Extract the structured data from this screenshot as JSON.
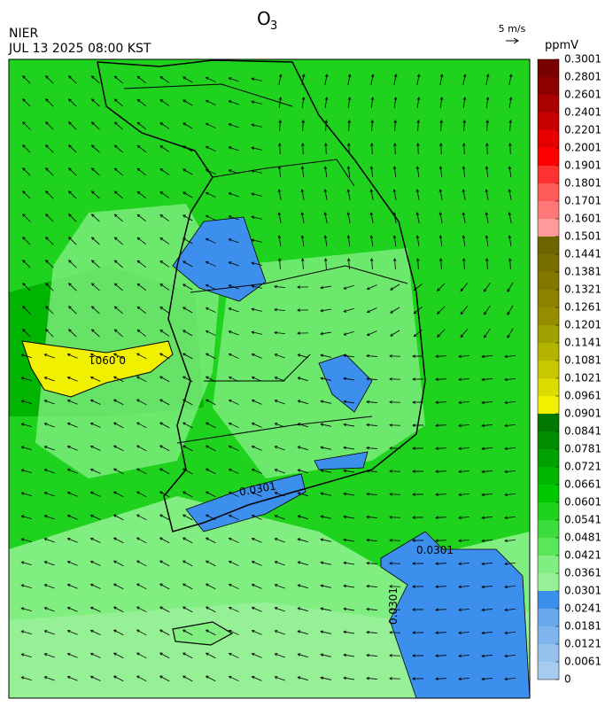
{
  "header": {
    "title": "O",
    "title_sub": "3",
    "agency": "NIER",
    "datetime": "JUL 13 2025 08:00 KST",
    "wind_scale": "5 m/s"
  },
  "map": {
    "contour_labels": [
      "0.0901",
      "0.0301",
      "0.0301",
      "0.0301"
    ]
  },
  "colorbar": {
    "unit": "ppmV",
    "ticks": [
      0,
      0.0061,
      0.0121,
      0.0181,
      0.0241,
      0.0301,
      0.0361,
      0.0421,
      0.0481,
      0.0541,
      0.0601,
      0.0661,
      0.0721,
      0.0781,
      0.0841,
      0.0901,
      0.0961,
      0.1021,
      0.1081,
      0.1141,
      0.1201,
      0.1261,
      0.1321,
      0.1381,
      0.1441,
      0.1501,
      0.1601,
      0.1701,
      0.1801,
      0.1901,
      0.2001,
      0.2201,
      0.2401,
      0.2601,
      0.2801,
      0.3001
    ],
    "colors": [
      "#a6cbee",
      "#96c0ee",
      "#80b4ee",
      "#6aa8ee",
      "#3c8fec",
      "#96f096",
      "#80ee80",
      "#5ae65a",
      "#3cdc3c",
      "#1ed21e",
      "#00c800",
      "#00b400",
      "#00a000",
      "#008c00",
      "#007800",
      "#f0f000",
      "#dcdc00",
      "#c8c800",
      "#b4b400",
      "#a0a000",
      "#968c00",
      "#8c8200",
      "#827800",
      "#786e00",
      "#6e6400",
      "#ff9a9a",
      "#ff7878",
      "#ff5a5a",
      "#ff3232",
      "#ff0000",
      "#e60000",
      "#c80000",
      "#aa0000",
      "#8c0000",
      "#780000"
    ]
  }
}
